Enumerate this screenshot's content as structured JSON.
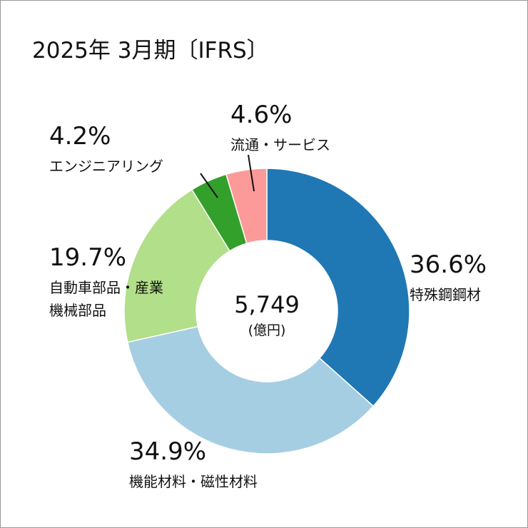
{
  "chart_data": {
    "type": "pie",
    "title": "2025年 3月期〔IFRS〕",
    "categories": [
      "特殊鋼鋼材",
      "機能材料・磁性材料",
      "自動車部品・産業機械部品",
      "エンジニアリング",
      "流通・サービス"
    ],
    "values": [
      36.6,
      34.9,
      19.7,
      4.2,
      4.6
    ],
    "value_labels": [
      "36.6%",
      "34.9%",
      "19.7%",
      "4.2%",
      "4.6%"
    ],
    "colors": [
      "#1f78b4",
      "#a6cee3",
      "#b2df8a",
      "#33a02c",
      "#fb9a99"
    ],
    "center_value": "5,749",
    "center_unit": "(億円)"
  }
}
